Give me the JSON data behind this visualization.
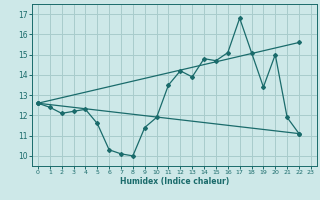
{
  "xlabel": "Humidex (Indice chaleur)",
  "bg_color": "#cde8e8",
  "grid_color": "#a8cccc",
  "line_color": "#1a6b6b",
  "xlim": [
    -0.5,
    23.5
  ],
  "ylim": [
    9.5,
    17.5
  ],
  "xticks": [
    0,
    1,
    2,
    3,
    4,
    5,
    6,
    7,
    8,
    9,
    10,
    11,
    12,
    13,
    14,
    15,
    16,
    17,
    18,
    19,
    20,
    21,
    22,
    23
  ],
  "yticks": [
    10,
    11,
    12,
    13,
    14,
    15,
    16,
    17
  ],
  "series1_x": [
    0,
    1,
    2,
    3,
    4,
    5,
    6,
    7,
    8,
    9,
    10,
    11,
    12,
    13,
    14,
    15,
    16,
    17,
    18,
    19,
    20,
    21,
    22
  ],
  "series1_y": [
    12.6,
    12.4,
    12.1,
    12.2,
    12.3,
    11.6,
    10.3,
    10.1,
    10.0,
    11.4,
    11.9,
    13.5,
    14.2,
    13.9,
    14.8,
    14.7,
    15.1,
    16.8,
    15.1,
    13.4,
    15.0,
    11.9,
    11.1
  ],
  "series2_x": [
    0,
    22
  ],
  "series2_y": [
    12.6,
    15.6
  ],
  "series3_x": [
    0,
    22
  ],
  "series3_y": [
    12.6,
    11.1
  ]
}
